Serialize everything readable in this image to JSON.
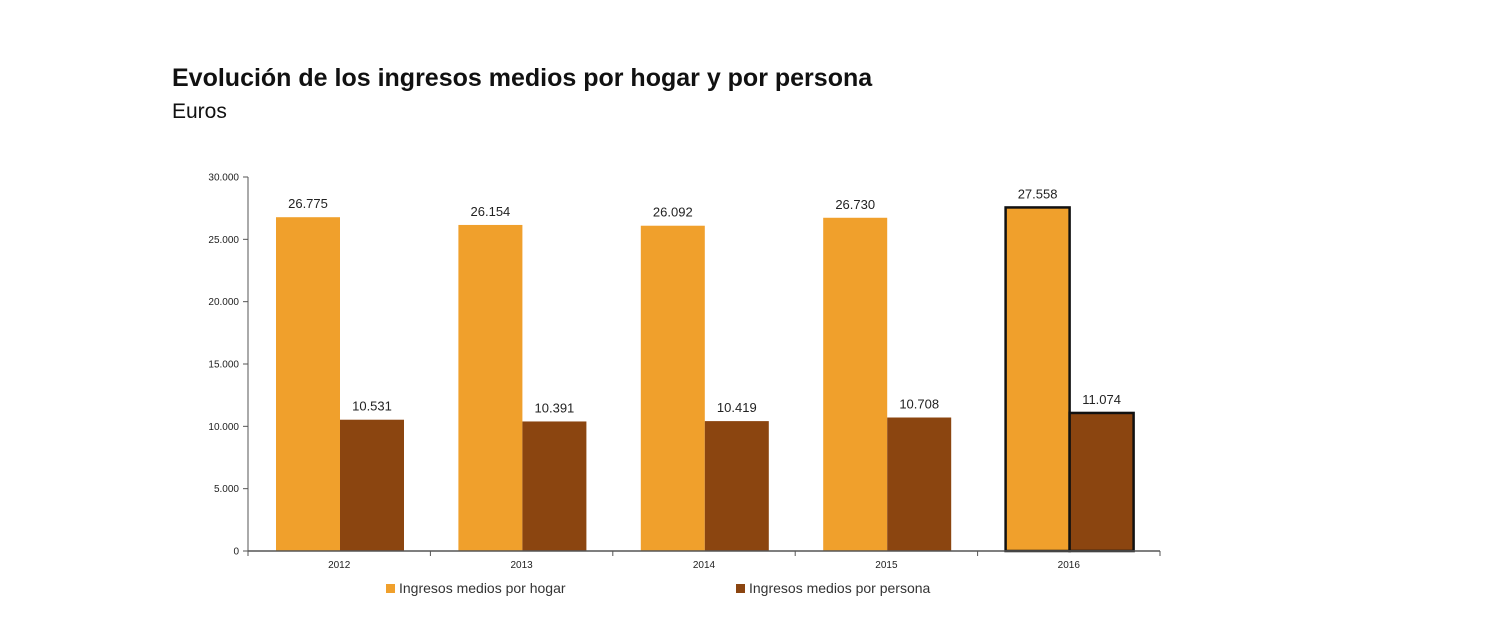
{
  "chart_data": {
    "type": "bar",
    "title": "Evolución de los ingresos medios por hogar y por persona",
    "subtitle": "Euros",
    "categories": [
      "2012",
      "2013",
      "2014",
      "2015",
      "2016"
    ],
    "series": [
      {
        "name": "Ingresos medios por hogar",
        "values": [
          26775,
          26154,
          26092,
          26730,
          27558
        ],
        "labels": [
          "26.775",
          "26.154",
          "26.092",
          "26.730",
          "27.558"
        ],
        "color": "#F0A02C"
      },
      {
        "name": "Ingresos medios por persona",
        "values": [
          10531,
          10391,
          10419,
          10708,
          11074
        ],
        "labels": [
          "10.531",
          "10.391",
          "10.419",
          "10.708",
          "11.074"
        ],
        "color": "#8B4510"
      }
    ],
    "highlight_category": "2016",
    "ylim": [
      0,
      30000
    ],
    "yticks": [
      0,
      5000,
      10000,
      15000,
      20000,
      25000,
      30000
    ],
    "ytick_labels": [
      "0",
      "5.000",
      "10.000",
      "15.000",
      "20.000",
      "25.000",
      "30.000"
    ],
    "grid": false,
    "legend_position": "bottom"
  }
}
